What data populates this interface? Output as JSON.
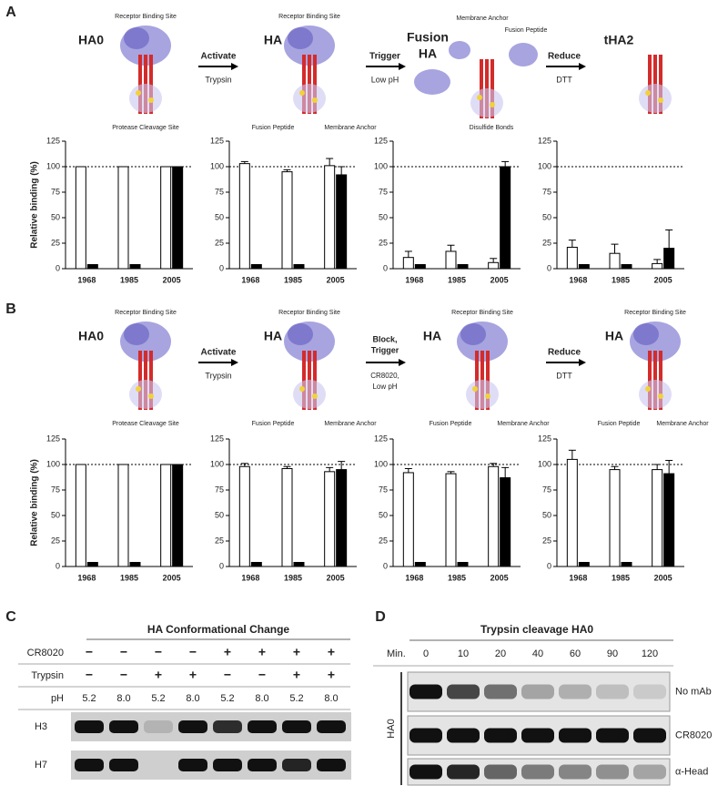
{
  "panel_labels": [
    "A",
    "B",
    "C",
    "D"
  ],
  "schematic_a": {
    "labels": [
      "HA0",
      "Receptor Binding Site",
      "Protease Cleavage Site",
      "Activate",
      "Trypsin",
      "HA",
      "Receptor Binding Site",
      "Fusion Peptide",
      "Membrane Anchor",
      "Trigger",
      "Low pH",
      "Fusion",
      "HA",
      "Membrane Anchor",
      "Fusion Peptide",
      "Disulfide Bonds",
      "Reduce",
      "DTT",
      "tHA2"
    ]
  },
  "schematic_b": {
    "labels": [
      "HA0",
      "Receptor Binding Site",
      "Protease Cleavage Site",
      "Activate",
      "Trypsin",
      "HA",
      "Receptor Binding Site",
      "Fusion Peptide",
      "Membrane Anchor",
      "Block,",
      "Trigger",
      "CR8020,",
      "Low pH",
      "HA",
      "Receptor Binding Site",
      "Fusion Peptide",
      "Membrane Anchor",
      "Reduce",
      "DTT",
      "HA",
      "Receptor Binding Site",
      "Fusion Peptide",
      "Membrane Anchor"
    ]
  },
  "chart_data": [
    {
      "type": "bar",
      "ylabel": "Relative binding (%)",
      "categories": [
        "1968",
        "1985",
        "2005"
      ],
      "series": [
        {
          "color": "#ffffff",
          "values": [
            100,
            100,
            100
          ]
        },
        {
          "color": "#000000",
          "values": [
            4,
            4,
            100
          ]
        }
      ],
      "ylim": [
        0,
        125
      ],
      "yticks": [
        0,
        25,
        50,
        75,
        100,
        125
      ],
      "reference_line": 100
    },
    {
      "type": "bar",
      "categories": [
        "1968",
        "1985",
        "2005"
      ],
      "series": [
        {
          "color": "#ffffff",
          "values": [
            103,
            95,
            101
          ],
          "errors": [
            2,
            2,
            7
          ]
        },
        {
          "color": "#000000",
          "values": [
            4,
            4,
            92
          ],
          "errors": [
            0,
            0,
            8
          ]
        }
      ],
      "ylim": [
        0,
        125
      ],
      "yticks": [
        0,
        25,
        50,
        75,
        100,
        125
      ],
      "reference_line": 100
    },
    {
      "type": "bar",
      "categories": [
        "1968",
        "1985",
        "2005"
      ],
      "series": [
        {
          "color": "#ffffff",
          "values": [
            11,
            17,
            6
          ],
          "errors": [
            6,
            6,
            4
          ]
        },
        {
          "color": "#000000",
          "values": [
            4,
            4,
            100
          ],
          "errors": [
            0,
            0,
            5
          ]
        }
      ],
      "ylim": [
        0,
        125
      ],
      "yticks": [
        0,
        25,
        50,
        75,
        100,
        125
      ],
      "reference_line": 100
    },
    {
      "type": "bar",
      "categories": [
        "1968",
        "1985",
        "2005"
      ],
      "series": [
        {
          "color": "#ffffff",
          "values": [
            21,
            15,
            5
          ],
          "errors": [
            7,
            9,
            4
          ]
        },
        {
          "color": "#000000",
          "values": [
            4,
            4,
            20
          ],
          "errors": [
            0,
            0,
            18
          ]
        }
      ],
      "ylim": [
        0,
        125
      ],
      "yticks": [
        0,
        25,
        50,
        75,
        100,
        125
      ],
      "reference_line": 100
    },
    {
      "type": "bar",
      "ylabel": "Relative binding (%)",
      "categories": [
        "1968",
        "1985",
        "2005"
      ],
      "series": [
        {
          "color": "#ffffff",
          "values": [
            100,
            100,
            100
          ]
        },
        {
          "color": "#000000",
          "values": [
            4,
            4,
            100
          ]
        }
      ],
      "ylim": [
        0,
        125
      ],
      "yticks": [
        0,
        25,
        50,
        75,
        100,
        125
      ],
      "reference_line": 100
    },
    {
      "type": "bar",
      "categories": [
        "1968",
        "1985",
        "2005"
      ],
      "series": [
        {
          "color": "#ffffff",
          "values": [
            98,
            96,
            93
          ],
          "errors": [
            3,
            2,
            4
          ]
        },
        {
          "color": "#000000",
          "values": [
            4,
            4,
            95
          ],
          "errors": [
            0,
            0,
            8
          ]
        }
      ],
      "ylim": [
        0,
        125
      ],
      "yticks": [
        0,
        25,
        50,
        75,
        100,
        125
      ],
      "reference_line": 100
    },
    {
      "type": "bar",
      "categories": [
        "1968",
        "1985",
        "2005"
      ],
      "series": [
        {
          "color": "#ffffff",
          "values": [
            92,
            91,
            98
          ],
          "errors": [
            4,
            2,
            3
          ]
        },
        {
          "color": "#000000",
          "values": [
            4,
            4,
            87
          ],
          "errors": [
            0,
            0,
            10
          ]
        }
      ],
      "ylim": [
        0,
        125
      ],
      "yticks": [
        0,
        25,
        50,
        75,
        100,
        125
      ],
      "reference_line": 100
    },
    {
      "type": "bar",
      "categories": [
        "1968",
        "1985",
        "2005"
      ],
      "series": [
        {
          "color": "#ffffff",
          "values": [
            105,
            95,
            95
          ],
          "errors": [
            9,
            3,
            5
          ]
        },
        {
          "color": "#000000",
          "values": [
            4,
            4,
            91
          ],
          "errors": [
            0,
            0,
            13
          ]
        }
      ],
      "ylim": [
        0,
        125
      ],
      "yticks": [
        0,
        25,
        50,
        75,
        100,
        125
      ],
      "reference_line": 100
    }
  ],
  "panel_c": {
    "title": "HA Conformational Change",
    "row_labels": [
      "CR8020",
      "Trypsin",
      "pH"
    ],
    "cr8020": [
      "−",
      "−",
      "−",
      "−",
      "+",
      "+",
      "+",
      "+"
    ],
    "trypsin": [
      "−",
      "−",
      "+",
      "+",
      "−",
      "−",
      "+",
      "+"
    ],
    "ph": [
      "5.2",
      "8.0",
      "5.2",
      "8.0",
      "5.2",
      "8.0",
      "5.2",
      "8.0"
    ],
    "gels": [
      "H3",
      "H7"
    ]
  },
  "panel_d": {
    "title": "Trypsin cleavage HA0",
    "min_label": "Min.",
    "times": [
      "0",
      "10",
      "20",
      "40",
      "60",
      "90",
      "120"
    ],
    "rows": [
      "No mAb",
      "CR8020",
      "α-Head"
    ],
    "side": "HA0"
  }
}
